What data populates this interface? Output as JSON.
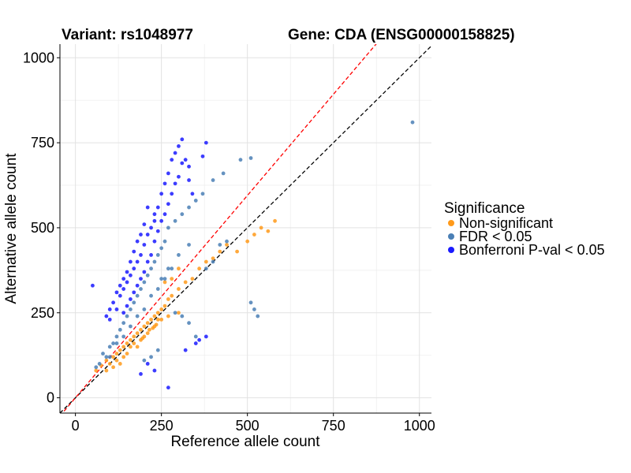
{
  "chart_data": {
    "type": "scatter",
    "title_left": "Variant: rs1048977",
    "title_right": "Gene: CDA (ENSG00000158825)",
    "xlabel": "Reference allele count",
    "ylabel": "Alternative allele count",
    "xlim": [
      -45,
      1035
    ],
    "ylim": [
      -45,
      1040
    ],
    "xticks": [
      0,
      250,
      500,
      750,
      1000
    ],
    "yticks": [
      0,
      250,
      500,
      750,
      1000
    ],
    "grid": true,
    "reference_lines": [
      {
        "name": "identity",
        "slope": 1.0,
        "intercept": 0,
        "color": "#000000",
        "style": "dashed"
      },
      {
        "name": "expected-ratio",
        "slope": 1.19,
        "intercept": 0,
        "color": "#ff0000",
        "style": "dashed"
      }
    ],
    "legend": {
      "title": "Significance",
      "position": "right",
      "entries": [
        {
          "label": "Non-significant",
          "color": "#ff9a1a"
        },
        {
          "label": "FDR < 0.05",
          "color": "#4a7fb5"
        },
        {
          "label": "Bonferroni P-val < 0.05",
          "color": "#1a1aff"
        }
      ]
    },
    "series": [
      {
        "name": "Non-significant",
        "color": "#ff9a1a",
        "points": [
          [
            60,
            80
          ],
          [
            75,
            95
          ],
          [
            90,
            110
          ],
          [
            100,
            100
          ],
          [
            110,
            120
          ],
          [
            120,
            130
          ],
          [
            130,
            140
          ],
          [
            140,
            150
          ],
          [
            150,
            160
          ],
          [
            160,
            170
          ],
          [
            170,
            180
          ],
          [
            180,
            190
          ],
          [
            190,
            200
          ],
          [
            200,
            210
          ],
          [
            210,
            220
          ],
          [
            220,
            230
          ],
          [
            230,
            240
          ],
          [
            240,
            250
          ],
          [
            250,
            260
          ],
          [
            260,
            270
          ],
          [
            270,
            290
          ],
          [
            280,
            300
          ],
          [
            300,
            320
          ],
          [
            320,
            340
          ],
          [
            340,
            350
          ],
          [
            360,
            380
          ],
          [
            380,
            400
          ],
          [
            400,
            410
          ],
          [
            420,
            430
          ],
          [
            440,
            450
          ],
          [
            470,
            430
          ],
          [
            500,
            460
          ],
          [
            520,
            480
          ],
          [
            540,
            500
          ],
          [
            560,
            490
          ],
          [
            580,
            520
          ],
          [
            260,
            340
          ],
          [
            280,
            350
          ],
          [
            300,
            380
          ],
          [
            240,
            230
          ],
          [
            130,
            100
          ],
          [
            160,
            150
          ],
          [
            200,
            180
          ],
          [
            230,
            210
          ],
          [
            250,
            230
          ],
          [
            270,
            240
          ],
          [
            300,
            250
          ],
          [
            150,
            130
          ],
          [
            110,
            90
          ],
          [
            90,
            80
          ],
          [
            120,
            110
          ],
          [
            140,
            120
          ],
          [
            170,
            160
          ],
          [
            190,
            170
          ],
          [
            210,
            190
          ],
          [
            225,
            205
          ],
          [
            180,
            150
          ],
          [
            195,
            175
          ],
          [
            215,
            200
          ],
          [
            235,
            215
          ]
        ]
      },
      {
        "name": "FDR < 0.05",
        "color": "#4a7fb5",
        "points": [
          [
            80,
            130
          ],
          [
            90,
            120
          ],
          [
            100,
            150
          ],
          [
            110,
            160
          ],
          [
            120,
            180
          ],
          [
            130,
            200
          ],
          [
            140,
            220
          ],
          [
            150,
            240
          ],
          [
            160,
            260
          ],
          [
            170,
            280
          ],
          [
            180,
            300
          ],
          [
            190,
            320
          ],
          [
            200,
            340
          ],
          [
            210,
            360
          ],
          [
            220,
            380
          ],
          [
            230,
            400
          ],
          [
            240,
            420
          ],
          [
            250,
            440
          ],
          [
            260,
            460
          ],
          [
            270,
            500
          ],
          [
            290,
            520
          ],
          [
            310,
            540
          ],
          [
            330,
            560
          ],
          [
            350,
            580
          ],
          [
            370,
            600
          ],
          [
            400,
            640
          ],
          [
            430,
            660
          ],
          [
            480,
            700
          ],
          [
            510,
            705
          ],
          [
            980,
            810
          ],
          [
            200,
            260
          ],
          [
            220,
            300
          ],
          [
            240,
            320
          ],
          [
            260,
            350
          ],
          [
            280,
            380
          ],
          [
            180,
            240
          ],
          [
            160,
            210
          ],
          [
            140,
            180
          ],
          [
            120,
            160
          ],
          [
            100,
            120
          ],
          [
            510,
            280
          ],
          [
            520,
            260
          ],
          [
            530,
            240
          ],
          [
            290,
            250
          ],
          [
            310,
            240
          ],
          [
            330,
            220
          ],
          [
            200,
            110
          ],
          [
            220,
            120
          ],
          [
            240,
            140
          ],
          [
            350,
            180
          ],
          [
            60,
            90
          ],
          [
            70,
            100
          ],
          [
            380,
            380
          ],
          [
            400,
            400
          ],
          [
            420,
            450
          ],
          [
            440,
            460
          ],
          [
            250,
            350
          ],
          [
            270,
            380
          ],
          [
            300,
            420
          ],
          [
            330,
            450
          ]
        ]
      },
      {
        "name": "Bonferroni P-val < 0.05",
        "color": "#1a1aff",
        "points": [
          [
            50,
            330
          ],
          [
            100,
            230
          ],
          [
            120,
            260
          ],
          [
            130,
            300
          ],
          [
            140,
            320
          ],
          [
            150,
            340
          ],
          [
            160,
            360
          ],
          [
            170,
            380
          ],
          [
            180,
            400
          ],
          [
            190,
            420
          ],
          [
            200,
            450
          ],
          [
            210,
            480
          ],
          [
            220,
            500
          ],
          [
            230,
            520
          ],
          [
            240,
            560
          ],
          [
            250,
            600
          ],
          [
            260,
            630
          ],
          [
            270,
            660
          ],
          [
            280,
            700
          ],
          [
            290,
            720
          ],
          [
            300,
            740
          ],
          [
            310,
            760
          ],
          [
            380,
            750
          ],
          [
            370,
            710
          ],
          [
            330,
            680
          ],
          [
            140,
            250
          ],
          [
            150,
            270
          ],
          [
            160,
            290
          ],
          [
            170,
            310
          ],
          [
            180,
            330
          ],
          [
            190,
            350
          ],
          [
            200,
            370
          ],
          [
            210,
            400
          ],
          [
            220,
            420
          ],
          [
            230,
            460
          ],
          [
            240,
            490
          ],
          [
            250,
            520
          ],
          [
            260,
            540
          ],
          [
            270,
            570
          ],
          [
            280,
            600
          ],
          [
            290,
            630
          ],
          [
            300,
            650
          ],
          [
            310,
            690
          ],
          [
            320,
            700
          ],
          [
            330,
            640
          ],
          [
            340,
            600
          ],
          [
            210,
            560
          ],
          [
            230,
            540
          ],
          [
            200,
            510
          ],
          [
            190,
            480
          ],
          [
            180,
            460
          ],
          [
            170,
            430
          ],
          [
            160,
            400
          ],
          [
            150,
            370
          ],
          [
            140,
            350
          ],
          [
            130,
            330
          ],
          [
            120,
            310
          ],
          [
            110,
            280
          ],
          [
            100,
            260
          ],
          [
            90,
            240
          ],
          [
            380,
            180
          ],
          [
            360,
            170
          ],
          [
            350,
            160
          ],
          [
            320,
            140
          ],
          [
            210,
            100
          ],
          [
            270,
            30
          ],
          [
            190,
            70
          ],
          [
            230,
            80
          ]
        ]
      }
    ]
  }
}
